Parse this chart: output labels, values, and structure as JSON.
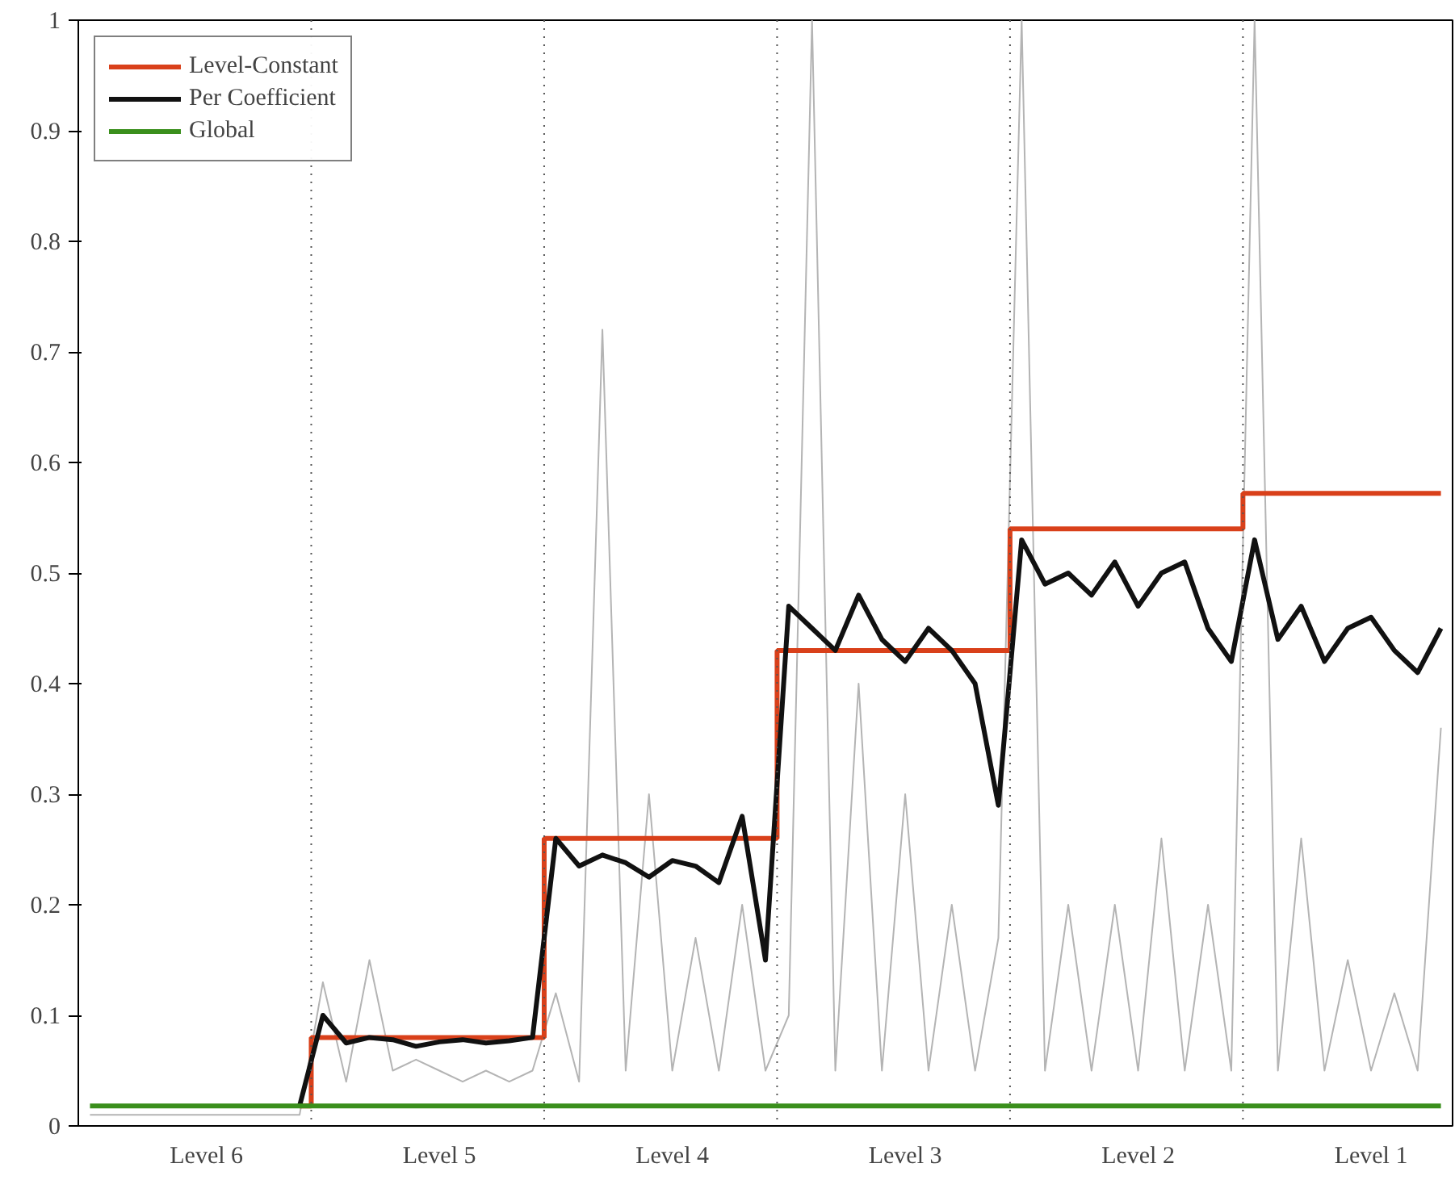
{
  "chart_data": {
    "type": "line",
    "categories": [
      null,
      null,
      null,
      null,
      null,
      "Level 6",
      null,
      null,
      null,
      null,
      null,
      null,
      null,
      null,
      null,
      "Level 5",
      null,
      null,
      null,
      null,
      null,
      null,
      null,
      null,
      null,
      "Level 4",
      null,
      null,
      null,
      null,
      null,
      null,
      null,
      null,
      null,
      "Level 3",
      null,
      null,
      null,
      null,
      null,
      null,
      null,
      null,
      null,
      "Level 2",
      null,
      null,
      null,
      null,
      null,
      null,
      null,
      null,
      null,
      "Level 1",
      null,
      null,
      null
    ],
    "ylim": [
      0,
      1
    ],
    "yticks": [
      0,
      0.1,
      0.2,
      0.3,
      0.4,
      0.5,
      0.6,
      0.7,
      0.8,
      0.9,
      1
    ],
    "grid": false,
    "legend": "top left",
    "line_style": "solid",
    "series": [
      {
        "color": "#b4b4b4",
        "values": [
          0.01,
          0.01,
          0.01,
          0.01,
          0.01,
          0.01,
          0.01,
          0.01,
          0.01,
          0.01,
          0.13,
          0.04,
          0.15,
          0.05,
          0.06,
          0.05,
          0.04,
          0.05,
          0.04,
          0.05,
          0.12,
          0.04,
          0.72,
          0.05,
          0.3,
          0.05,
          0.17,
          0.05,
          0.2,
          0.05,
          0.1,
          1.0,
          0.05,
          0.4,
          0.05,
          0.3,
          0.05,
          0.2,
          0.05,
          0.17,
          1.0,
          0.05,
          0.2,
          0.05,
          0.2,
          0.05,
          0.26,
          0.05,
          0.2,
          0.05,
          1.0,
          0.05,
          0.26,
          0.05,
          0.15,
          0.05,
          0.12,
          0.05,
          0.36
        ]
      },
      {
        "name": "Level-Constant",
        "type": "step",
        "color": "#d9401a",
        "values": [
          null,
          null,
          null,
          null,
          null,
          null,
          null,
          null,
          null,
          0.018,
          0.08,
          0.08,
          0.08,
          0.08,
          0.08,
          0.08,
          0.08,
          0.08,
          0.08,
          0.08,
          0.26,
          0.26,
          0.26,
          0.26,
          0.26,
          0.26,
          0.26,
          0.26,
          0.26,
          0.26,
          0.43,
          0.43,
          0.43,
          0.43,
          0.43,
          0.43,
          0.43,
          0.43,
          0.43,
          0.43,
          0.54,
          0.54,
          0.54,
          0.54,
          0.54,
          0.54,
          0.54,
          0.54,
          0.54,
          0.54,
          0.572,
          0.572,
          0.572,
          0.572,
          0.572,
          0.572,
          0.572,
          0.572,
          0.572
        ]
      },
      {
        "name": "Per Coefficient",
        "color": "#111111",
        "values": [
          null,
          null,
          null,
          null,
          null,
          null,
          null,
          null,
          null,
          0.018,
          0.1,
          0.075,
          0.08,
          0.078,
          0.072,
          0.076,
          0.078,
          0.075,
          0.077,
          0.08,
          0.26,
          0.235,
          0.245,
          0.238,
          0.225,
          0.24,
          0.235,
          0.22,
          0.28,
          0.15,
          0.47,
          0.45,
          0.43,
          0.48,
          0.44,
          0.42,
          0.45,
          0.43,
          0.4,
          0.29,
          0.53,
          0.49,
          0.5,
          0.48,
          0.51,
          0.47,
          0.5,
          0.51,
          0.45,
          0.42,
          0.53,
          0.44,
          0.47,
          0.42,
          0.45,
          0.46,
          0.43,
          0.41,
          0.45
        ]
      },
      {
        "name": "Global",
        "color": "#3a8f1c",
        "values": [
          0.018,
          0.018,
          0.018,
          0.018,
          0.018,
          0.018,
          0.018,
          0.018,
          0.018,
          0.018,
          0.018,
          0.018,
          0.018,
          0.018,
          0.018,
          0.018,
          0.018,
          0.018,
          0.018,
          0.018,
          0.018,
          0.018,
          0.018,
          0.018,
          0.018,
          0.018,
          0.018,
          0.018,
          0.018,
          0.018,
          0.018,
          0.018,
          0.018,
          0.018,
          0.018,
          0.018,
          0.018,
          0.018,
          0.018,
          0.018,
          0.018,
          0.018,
          0.018,
          0.018,
          0.018,
          0.018,
          0.018,
          0.018,
          0.018,
          0.018,
          0.018,
          0.018,
          0.018,
          0.018,
          0.018,
          0.018,
          0.018,
          0.018,
          0.018
        ]
      }
    ]
  }
}
